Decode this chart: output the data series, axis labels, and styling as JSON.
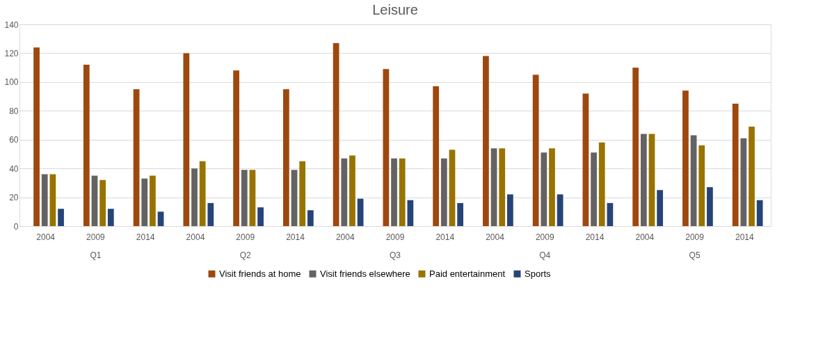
{
  "chart_data": {
    "type": "bar",
    "title": "Leisure",
    "categories": [
      "2004",
      "2009",
      "2014",
      "2004",
      "2009",
      "2014",
      "2004",
      "2009",
      "2014",
      "2004",
      "2009",
      "2014",
      "2004",
      "2009",
      "2014"
    ],
    "annotations": [
      "Q1",
      "Q2",
      "Q3",
      "Q4",
      "Q5"
    ],
    "series": [
      {
        "name": "Visit friends at home",
        "color": "#9e480e",
        "values": [
          124,
          112,
          95,
          120,
          108,
          95,
          127,
          109,
          97,
          118,
          105,
          92,
          110,
          94,
          85
        ]
      },
      {
        "name": "Visit friends elsewhere",
        "color": "#636363",
        "values": [
          36,
          35,
          33,
          40,
          39,
          39,
          47,
          47,
          47,
          54,
          51,
          51,
          64,
          63,
          61
        ]
      },
      {
        "name": "Paid entertainment",
        "color": "#997300",
        "values": [
          36,
          32,
          35,
          45,
          39,
          45,
          49,
          47,
          53,
          54,
          54,
          58,
          64,
          56,
          69
        ]
      },
      {
        "name": "Sports",
        "color": "#264478",
        "values": [
          12,
          12,
          10,
          16,
          13,
          11,
          19,
          18,
          16,
          22,
          22,
          16,
          25,
          27,
          18
        ]
      }
    ],
    "ylim": [
      0,
      140
    ],
    "yticks": [
      0,
      20,
      40,
      60,
      80,
      100,
      120,
      140
    ],
    "grid": "y",
    "legend": "bottom"
  }
}
